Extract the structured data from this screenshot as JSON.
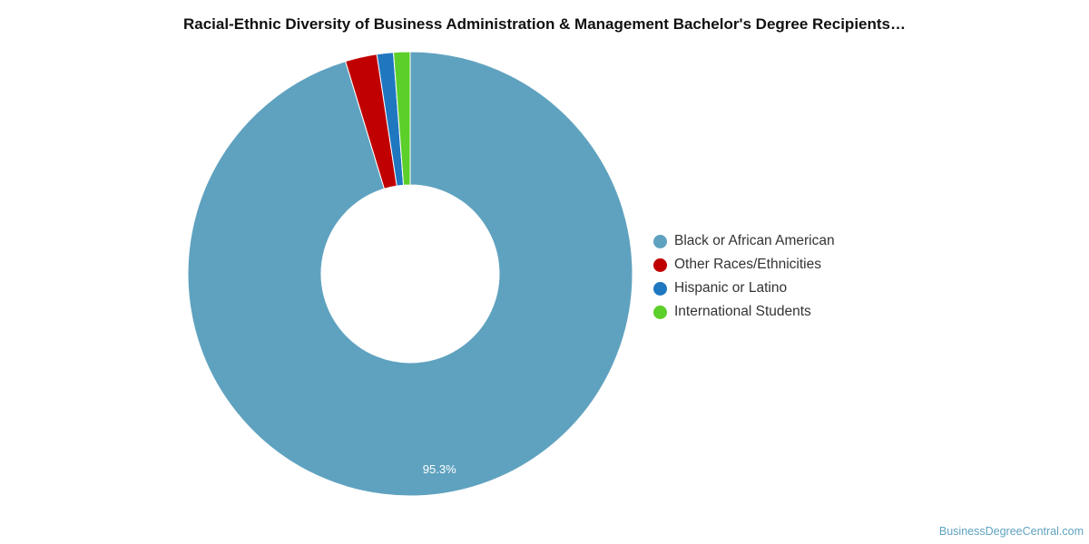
{
  "chart_data": {
    "type": "pie",
    "title": "Racial-Ethnic Diversity of Business Administration & Management Bachelor's Degree Recipients…",
    "donut": true,
    "categories": [
      "Black or African American",
      "Other Races/Ethnicities",
      "Hispanic or Latino",
      "International Students"
    ],
    "values": [
      95.3,
      2.3,
      1.2,
      1.2
    ],
    "colors": [
      "#5fa2bf",
      "#c00000",
      "#1f77c0",
      "#5ccf2a"
    ],
    "data_labels": [
      "95.3%",
      "",
      "",
      ""
    ],
    "legend_position": "right"
  },
  "watermark": "BusinessDegreeCentral.com"
}
